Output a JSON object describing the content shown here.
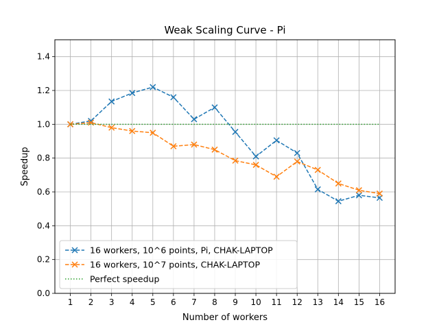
{
  "chart_data": {
    "type": "line",
    "title": "Weak Scaling Curve - Pi",
    "xlabel": "Number of workers",
    "ylabel": "Speedup",
    "xlim": [
      0.25,
      16.75
    ],
    "ylim": [
      0.0,
      1.5
    ],
    "x": [
      1,
      2,
      3,
      4,
      5,
      6,
      7,
      8,
      9,
      10,
      11,
      12,
      13,
      14,
      15,
      16
    ],
    "xticks": [
      "1",
      "2",
      "3",
      "4",
      "5",
      "6",
      "7",
      "8",
      "9",
      "10",
      "11",
      "12",
      "13",
      "14",
      "15",
      "16"
    ],
    "yticks": [
      0.0,
      0.2,
      0.4,
      0.6,
      0.8,
      1.0,
      1.2,
      1.4
    ],
    "grid": true,
    "legend_position": "lower-left",
    "series": [
      {
        "name": "16 workers, 10^6 points, Pi, CHAK-LAPTOP",
        "color": "#1f77b4",
        "linestyle": "dashed",
        "marker": "x",
        "values": [
          1.0,
          1.02,
          1.135,
          1.185,
          1.22,
          1.16,
          1.03,
          1.1,
          0.955,
          0.81,
          0.905,
          0.83,
          0.615,
          0.545,
          0.58,
          0.565
        ]
      },
      {
        "name": "16 workers, 10^7 points, CHAK-LAPTOP",
        "color": "#ff7f0e",
        "linestyle": "dashed",
        "marker": "x",
        "values": [
          1.0,
          1.01,
          0.98,
          0.96,
          0.95,
          0.87,
          0.88,
          0.85,
          0.785,
          0.76,
          0.69,
          0.78,
          0.73,
          0.65,
          0.61,
          0.59
        ]
      },
      {
        "name": "Perfect speedup",
        "color": "#2ca02c",
        "linestyle": "dotted",
        "marker": "none",
        "values": [
          1,
          1,
          1,
          1,
          1,
          1,
          1,
          1,
          1,
          1,
          1,
          1,
          1,
          1,
          1,
          1
        ]
      }
    ]
  }
}
